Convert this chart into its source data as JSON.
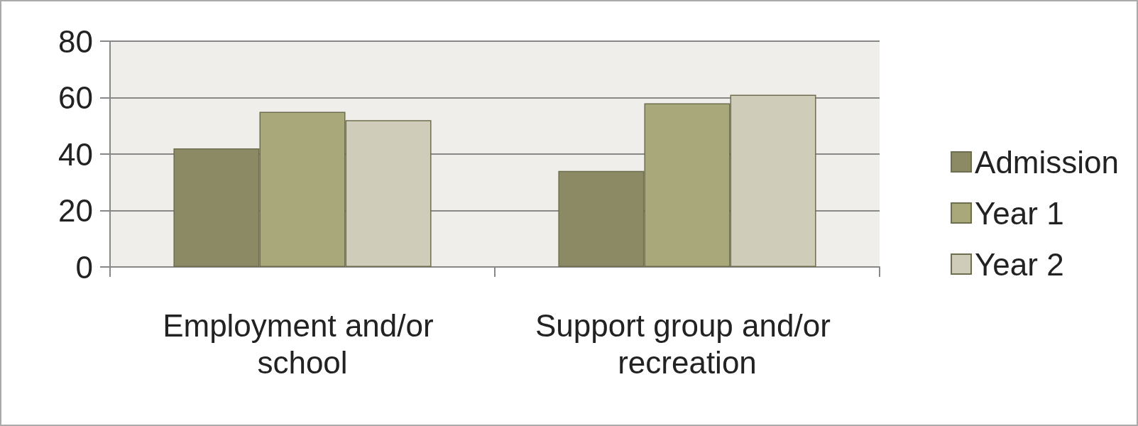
{
  "chart_data": {
    "type": "bar",
    "categories": [
      "Employment and/or school",
      "Support group and/or recreation"
    ],
    "series": [
      {
        "name": "Admission",
        "color": "#8b8a65",
        "values": [
          42,
          34
        ]
      },
      {
        "name": "Year 1",
        "color": "#a9a87b",
        "values": [
          55,
          58
        ]
      },
      {
        "name": "Year 2",
        "color": "#cfcdb9",
        "values": [
          52,
          61
        ]
      }
    ],
    "ylim": [
      0,
      80
    ],
    "yticks": [
      0,
      20,
      40,
      60,
      80
    ],
    "grid": "y",
    "legend": "right"
  }
}
